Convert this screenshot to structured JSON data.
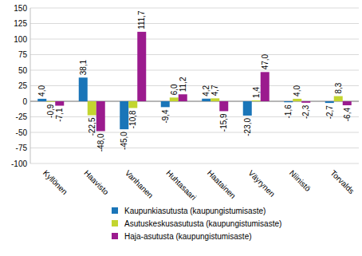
{
  "chart_data": {
    "type": "bar",
    "categories": [
      "Kyllönen",
      "Haavisto",
      "Vanhanen",
      "Huhtasaari",
      "Haatainen",
      "Väyrynen",
      "Niinistö",
      "Torvalds"
    ],
    "series": [
      {
        "name": "Kaupunkiasutusta (kaupungistumisaste)",
        "color": "#1a75b8",
        "values": [
          4.0,
          38.1,
          -45.0,
          -9.4,
          4.2,
          -23.0,
          -1.6,
          -2.7
        ],
        "value_labels": [
          "4,0",
          "38,1",
          "-45,0",
          "-9,4",
          "4,2",
          "-23,0",
          "-1,6",
          "-2,7"
        ]
      },
      {
        "name": "Asutuskeskusasutusta (kaupungistumisaste)",
        "color": "#c3d52f",
        "values": [
          -0.9,
          -22.5,
          -10.8,
          6.0,
          4.7,
          1.4,
          4.0,
          8.3
        ],
        "value_labels": [
          "-0,9",
          "-22,5",
          "-10,8",
          "6,0",
          "4,7",
          "1,4",
          "4,0",
          "8,3"
        ]
      },
      {
        "name": "Haja-asutusta (kaupungistumisaste)",
        "color": "#9b1b8e",
        "values": [
          -7.1,
          -48.0,
          111.7,
          11.2,
          -15.9,
          47.0,
          -2.3,
          -6.4
        ],
        "value_labels": [
          "-7,1",
          "-48,0",
          "111,7",
          "11,2",
          "-15,9",
          "47,0",
          "-2,3",
          "-6,4"
        ]
      }
    ],
    "ylim": [
      -100,
      150
    ],
    "yticks": [
      -100,
      -75,
      -50,
      -25,
      0,
      25,
      50,
      75,
      100,
      125,
      150
    ],
    "grid": true,
    "data_labels": true,
    "legend": "bottom"
  }
}
